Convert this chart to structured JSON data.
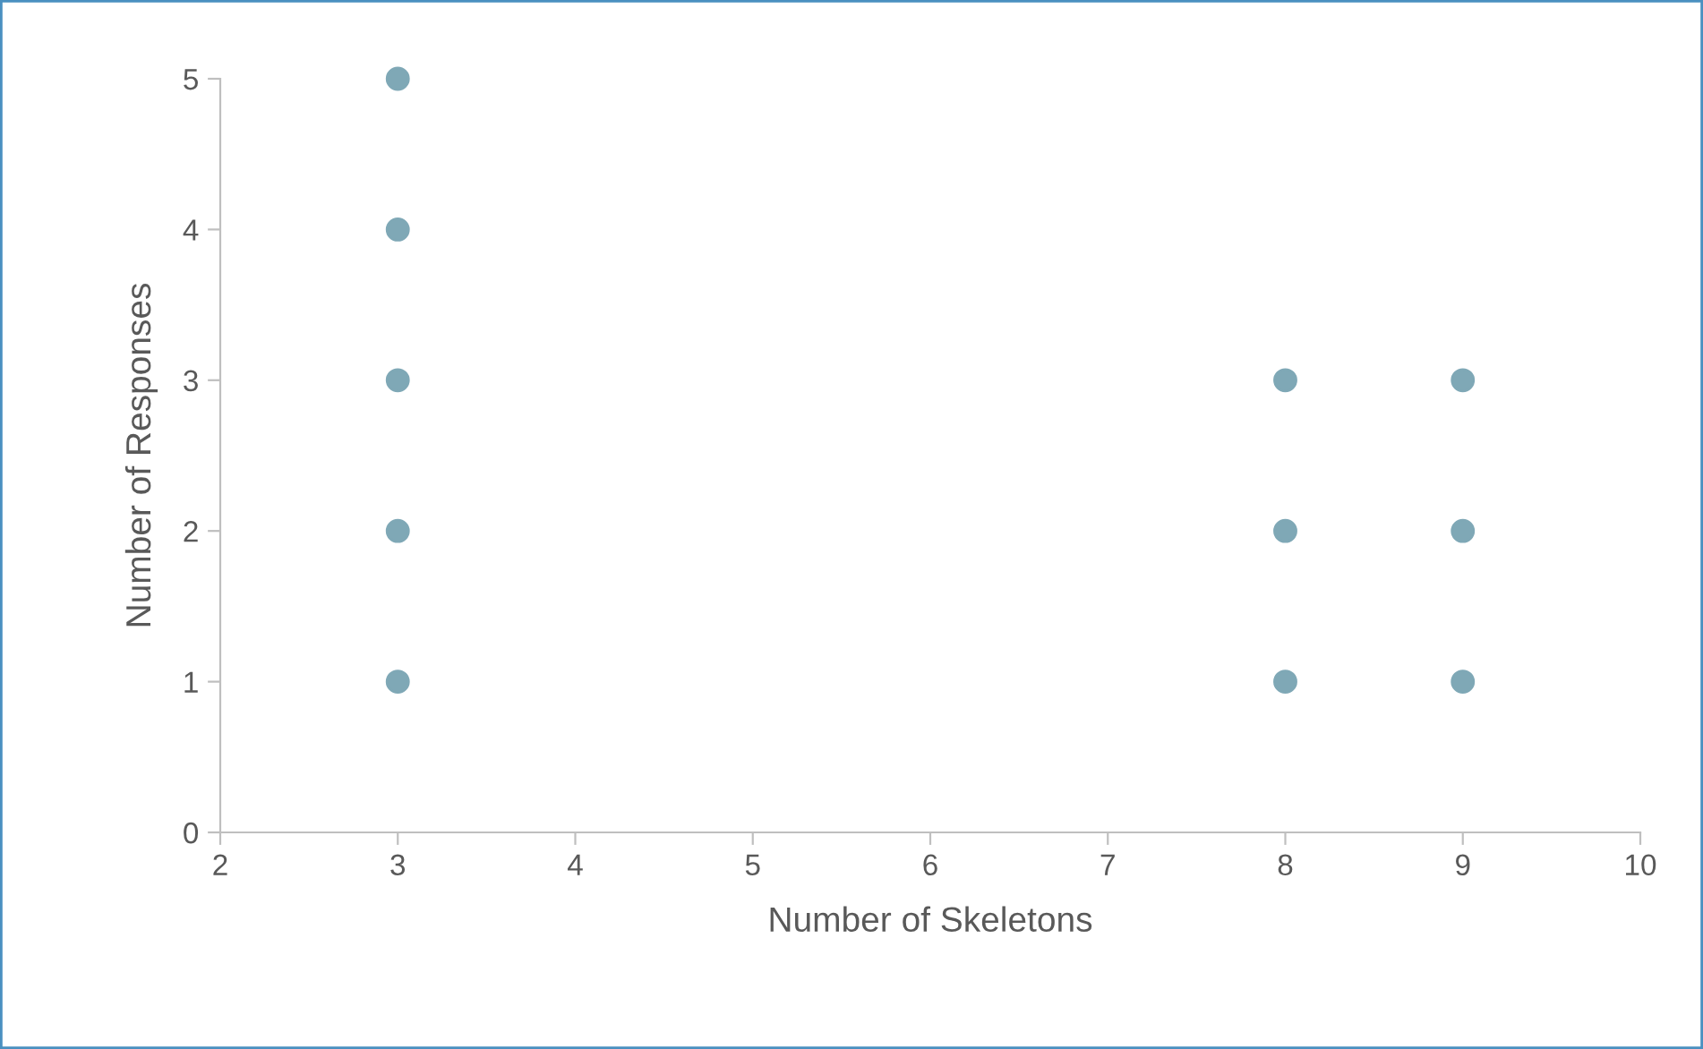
{
  "chart_data": {
    "type": "scatter",
    "xlabel": "Number of Skeletons",
    "ylabel": "Number of Responses",
    "series": [
      {
        "color": "#7fa8b6",
        "x": [
          3,
          3,
          3,
          3,
          3,
          8,
          8,
          8,
          9,
          9,
          9
        ],
        "values": [
          5,
          4,
          3,
          2,
          1,
          3,
          2,
          1,
          3,
          2,
          1
        ]
      }
    ],
    "xlim": [
      2,
      10
    ],
    "xticks": [
      2,
      3,
      4,
      5,
      6,
      7,
      8,
      9,
      10
    ],
    "ylim": [
      0,
      5
    ],
    "yticks": [
      0,
      1,
      2,
      3,
      4,
      5
    ],
    "grid": false,
    "legend": false,
    "marker": "circle"
  }
}
